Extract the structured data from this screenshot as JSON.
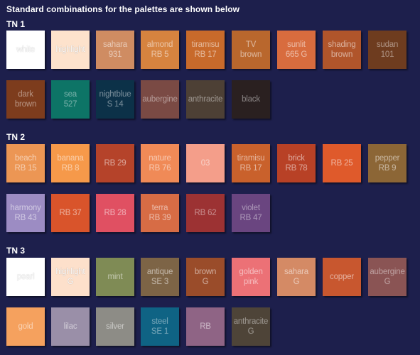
{
  "heading": "Standard combinations for the palettes are shown below",
  "groups": [
    {
      "title": "TN 1",
      "rows": [
        [
          {
            "label": "white",
            "color": "#ffffff",
            "tone": "light"
          },
          {
            "label": "highlight",
            "color": "#fde2cc",
            "tone": "light"
          },
          {
            "label": "sahara\n931",
            "color": "#cf8c62",
            "tone": "mid"
          },
          {
            "label": "almond\nRB 5",
            "color": "#d6833f",
            "tone": "mid"
          },
          {
            "label": "tiramisu\nRB 17",
            "color": "#c86a2b",
            "tone": "mid"
          },
          {
            "label": "TV\nbrown",
            "color": "#b9672d",
            "tone": "mid"
          },
          {
            "label": "sunlit\n665 G",
            "color": "#d86c3e",
            "tone": "mid"
          },
          {
            "label": "shading\nbrown",
            "color": "#b0552b",
            "tone": "mid"
          },
          {
            "label": "sudan\n101",
            "color": "#6e3c1f",
            "tone": "dark"
          }
        ],
        [
          {
            "label": "dark\nbrown",
            "color": "#7d3c1d",
            "tone": "dark"
          },
          {
            "label": "sea\n527",
            "color": "#0d7466",
            "tone": "dark"
          },
          {
            "label": "nightblue\nS 14",
            "color": "#0c3148",
            "tone": "dark"
          },
          {
            "label": "aubergine",
            "color": "#7a4a44",
            "tone": "dark"
          },
          {
            "label": "anthracite",
            "color": "#4d4035",
            "tone": "dark"
          },
          {
            "label": "black",
            "color": "#2a2020",
            "tone": "dark"
          }
        ]
      ]
    },
    {
      "title": "TN 2",
      "rows": [
        [
          {
            "label": "beach\nRB 15",
            "color": "#ec9654",
            "tone": "mid"
          },
          {
            "label": "banana\nRB 8",
            "color": "#f6994a",
            "tone": "mid"
          },
          {
            "label": "RB 29",
            "color": "#b5432a",
            "tone": "mid"
          },
          {
            "label": "nature\nRB 76",
            "color": "#f08a57",
            "tone": "mid"
          },
          {
            "label": "03",
            "color": "#f49e8a",
            "tone": "mid"
          },
          {
            "label": "tiramisu\nRB 17",
            "color": "#c9612c",
            "tone": "mid"
          },
          {
            "label": "brick\nRB 78",
            "color": "#b84126",
            "tone": "mid"
          },
          {
            "label": "RB 25",
            "color": "#df5a2b",
            "tone": "mid"
          },
          {
            "label": "pepper\nRB 9",
            "color": "#8c6636",
            "tone": "mid"
          }
        ],
        [
          {
            "label": "harmony\nRB 43",
            "color": "#9c8cc3",
            "tone": "mid"
          },
          {
            "label": "RB 37",
            "color": "#d9542b",
            "tone": "mid"
          },
          {
            "label": "RB 28",
            "color": "#e05062",
            "tone": "mid"
          },
          {
            "label": "terra\nRB 39",
            "color": "#d76c45",
            "tone": "mid"
          },
          {
            "label": "RB 62",
            "color": "#9c3233",
            "tone": "dark"
          },
          {
            "label": "violet\nRB 47",
            "color": "#6a4580",
            "tone": "dark"
          }
        ]
      ]
    },
    {
      "title": "TN 3",
      "rows": [
        [
          {
            "label": "pearl",
            "color": "#ffffff",
            "tone": "light"
          },
          {
            "label": "highlight\nG",
            "color": "#fde0cb",
            "tone": "light"
          },
          {
            "label": "mint",
            "color": "#7f8b55",
            "tone": "mid"
          },
          {
            "label": "antique\nSE 3",
            "color": "#7d6446",
            "tone": "mid"
          },
          {
            "label": "brown\nG",
            "color": "#9a4c2a",
            "tone": "mid"
          },
          {
            "label": "golden\npink",
            "color": "#ec7176",
            "tone": "mid"
          },
          {
            "label": "sahara\nG",
            "color": "#d48a65",
            "tone": "mid"
          },
          {
            "label": "copper",
            "color": "#c8572f",
            "tone": "mid"
          },
          {
            "label": "aubergine\nG",
            "color": "#8a5454",
            "tone": "dark"
          }
        ],
        [
          {
            "label": "gold",
            "color": "#f5a15e",
            "tone": "mid"
          },
          {
            "label": "lilac",
            "color": "#9a8fa8",
            "tone": "mid"
          },
          {
            "label": "silver",
            "color": "#8d8c86",
            "tone": "mid"
          },
          {
            "label": "steel\nSE 1",
            "color": "#0f6384",
            "tone": "dark"
          },
          {
            "label": "RB",
            "color": "#8f6485",
            "tone": "mid"
          },
          {
            "label": "anthracite\nG",
            "color": "#4e4438",
            "tone": "dark"
          }
        ]
      ]
    }
  ]
}
